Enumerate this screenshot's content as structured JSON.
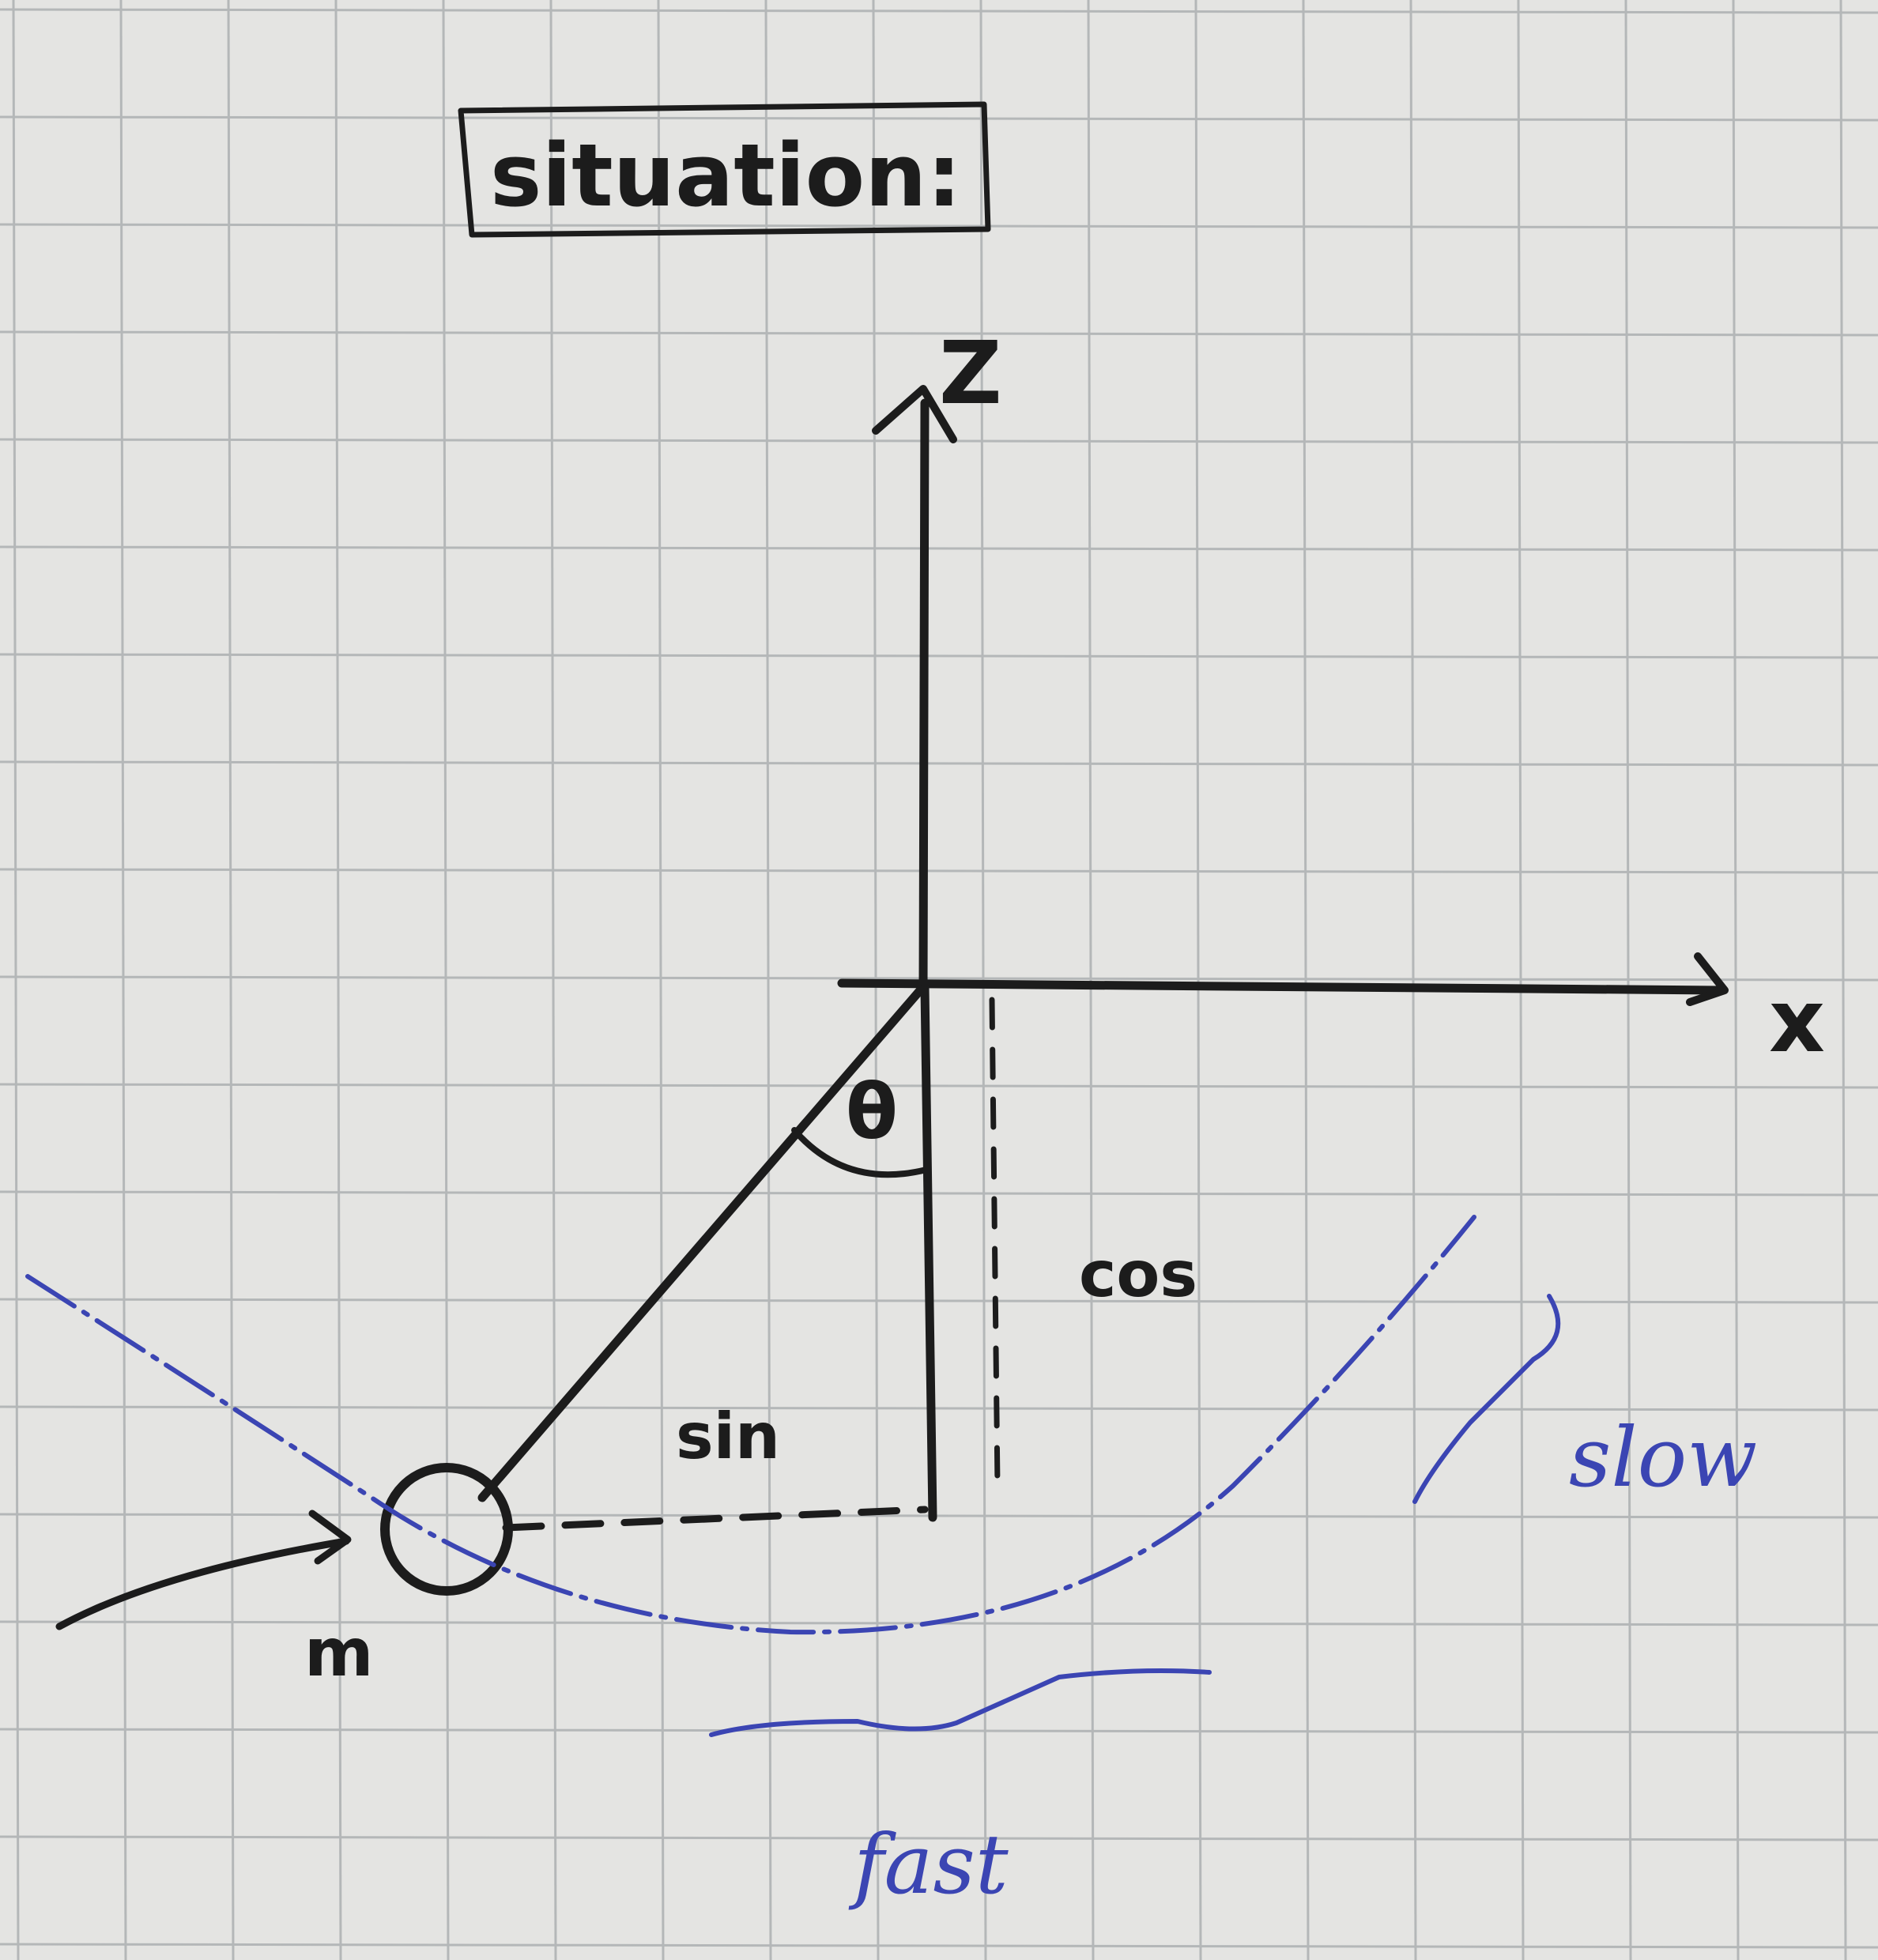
{
  "title": "situation:",
  "axes": {
    "vertical": "Z",
    "horizontal": "x"
  },
  "angle": "θ",
  "segments": {
    "horizontal": "sin",
    "vertical": "cos"
  },
  "mass": "m",
  "annotations": {
    "slow": "slow",
    "fast": "fast"
  },
  "colors": {
    "ink": "#1c1c1c",
    "blue_pen": "#3b45b3",
    "paper": "#e4e4e2",
    "grid": "#b4b7b8"
  }
}
